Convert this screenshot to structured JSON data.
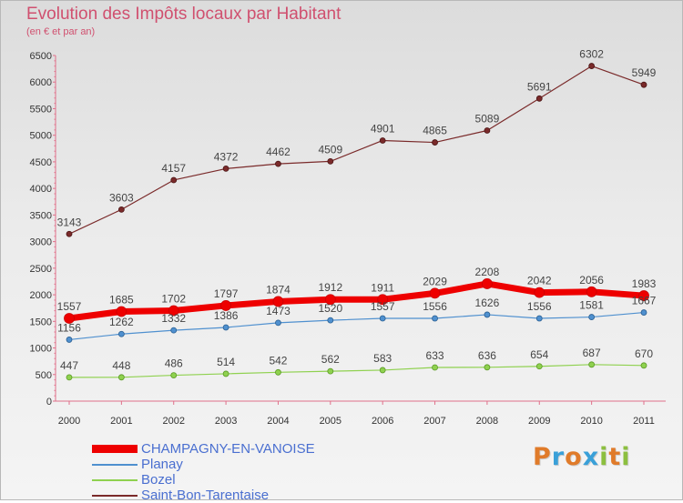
{
  "header": {
    "title": "Evolution des Impôts locaux par Habitant",
    "subtitle": "(en € et par an)"
  },
  "logo": {
    "text": "Proxiti",
    "letters": [
      "P",
      "r",
      "o",
      "x",
      "i",
      "t",
      "i"
    ],
    "colors": [
      "#e07b2a",
      "#3aa0d8",
      "#e07b2a",
      "#3aa0d8",
      "#8cbf3f",
      "#e07b2a",
      "#8cbf3f"
    ]
  },
  "chart_data": {
    "type": "line",
    "title": "Evolution des Impôts locaux par Habitant",
    "subtitle": "(en € et par an)",
    "x": [
      "2000",
      "2001",
      "2002",
      "2003",
      "2004",
      "2005",
      "2006",
      "2007",
      "2008",
      "2009",
      "2010",
      "2011"
    ],
    "ylim": [
      0,
      6500
    ],
    "yticks": [
      0,
      500,
      1000,
      1500,
      2000,
      2500,
      3000,
      3500,
      4000,
      4500,
      5000,
      5500,
      6000,
      6500
    ],
    "grid": false,
    "legend_position": "bottom-left",
    "series": [
      {
        "name": "Saint-Bon-Tarentaise",
        "color": "#7a2a2a",
        "values": [
          3143,
          3603,
          4157,
          4372,
          4462,
          4509,
          4901,
          4865,
          5089,
          5691,
          6302,
          5949
        ]
      },
      {
        "name": "CHAMPAGNY-EN-VANOISE",
        "color": "#ee0000",
        "values": [
          1557,
          1685,
          1702,
          1797,
          1874,
          1912,
          1911,
          2029,
          2208,
          2042,
          2056,
          1983
        ]
      },
      {
        "name": "Planay",
        "color": "#4f90cf",
        "values": [
          1156,
          1262,
          1332,
          1386,
          1473,
          1520,
          1557,
          1556,
          1626,
          1556,
          1581,
          1667
        ]
      },
      {
        "name": "Bozel",
        "color": "#8fd14f",
        "values": [
          447,
          448,
          486,
          514,
          542,
          562,
          583,
          633,
          636,
          654,
          687,
          670
        ]
      }
    ],
    "legend_order": [
      "CHAMPAGNY-EN-VANOISE",
      "Planay",
      "Bozel",
      "Saint-Bon-Tarentaise"
    ]
  }
}
